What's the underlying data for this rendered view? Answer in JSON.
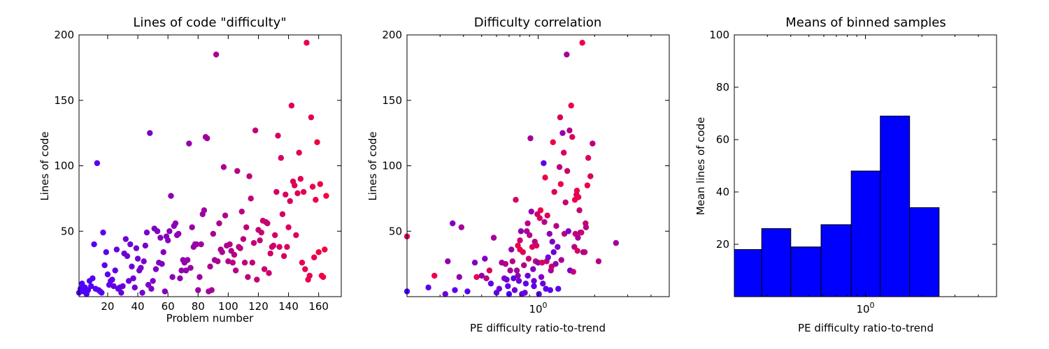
{
  "chart_data": [
    {
      "type": "scatter",
      "title": "Lines of code \"difficulty\"",
      "xlabel": "Problem number",
      "ylabel": "Lines of code",
      "xlim": [
        1,
        175
      ],
      "ylim": [
        0,
        200
      ],
      "x_ticks": [
        "20",
        "40",
        "60",
        "80",
        "100",
        "120",
        "140",
        "160"
      ],
      "y_ticks": [
        "50",
        "100",
        "150",
        "200"
      ],
      "color_gradient": [
        "#4a00ff",
        "#ff0033"
      ],
      "points": [
        [
          1,
          3
        ],
        [
          2,
          6
        ],
        [
          3,
          10
        ],
        [
          4,
          4
        ],
        [
          5,
          7
        ],
        [
          6,
          2
        ],
        [
          7,
          5
        ],
        [
          8,
          12
        ],
        [
          9,
          8
        ],
        [
          10,
          14
        ],
        [
          11,
          40
        ],
        [
          12,
          6
        ],
        [
          13,
          102
        ],
        [
          14,
          5
        ],
        [
          15,
          4
        ],
        [
          16,
          3
        ],
        [
          17,
          49
        ],
        [
          18,
          24
        ],
        [
          19,
          34
        ],
        [
          20,
          17
        ],
        [
          21,
          9
        ],
        [
          22,
          12
        ],
        [
          23,
          13
        ],
        [
          24,
          8
        ],
        [
          25,
          20
        ],
        [
          26,
          36
        ],
        [
          27,
          6
        ],
        [
          28,
          7
        ],
        [
          29,
          3
        ],
        [
          30,
          8
        ],
        [
          31,
          33
        ],
        [
          32,
          44
        ],
        [
          33,
          31
        ],
        [
          34,
          12
        ],
        [
          35,
          40
        ],
        [
          36,
          23
        ],
        [
          37,
          14
        ],
        [
          38,
          7
        ],
        [
          39,
          37
        ],
        [
          40,
          29
        ],
        [
          41,
          20
        ],
        [
          42,
          22
        ],
        [
          43,
          3
        ],
        [
          44,
          27
        ],
        [
          45,
          39
        ],
        [
          46,
          49
        ],
        [
          47,
          9
        ],
        [
          48,
          125
        ],
        [
          49,
          6
        ],
        [
          50,
          12
        ],
        [
          51,
          52
        ],
        [
          52,
          21
        ],
        [
          53,
          50
        ],
        [
          54,
          26
        ],
        [
          55,
          45
        ],
        [
          56,
          25
        ],
        [
          57,
          34
        ],
        [
          58,
          4
        ],
        [
          59,
          46
        ],
        [
          60,
          43
        ],
        [
          61,
          50
        ],
        [
          62,
          77
        ],
        [
          63,
          15
        ],
        [
          64,
          54
        ],
        [
          65,
          56
        ],
        [
          66,
          47
        ],
        [
          67,
          48
        ],
        [
          68,
          14
        ],
        [
          69,
          20
        ],
        [
          70,
          28
        ],
        [
          71,
          26
        ],
        [
          72,
          20
        ],
        [
          73,
          28
        ],
        [
          74,
          117
        ],
        [
          75,
          22
        ],
        [
          76,
          53
        ],
        [
          77,
          38
        ],
        [
          78,
          40
        ],
        [
          79,
          40
        ],
        [
          80,
          5
        ],
        [
          81,
          15
        ],
        [
          82,
          40
        ],
        [
          83,
          63
        ],
        [
          84,
          66
        ],
        [
          85,
          122
        ],
        [
          86,
          121
        ],
        [
          87,
          4
        ],
        [
          88,
          23
        ],
        [
          89,
          5
        ],
        [
          90,
          48
        ],
        [
          91,
          28
        ],
        [
          92,
          185
        ],
        [
          93,
          27
        ],
        [
          94,
          56
        ],
        [
          95,
          36
        ],
        [
          96,
          34
        ],
        [
          97,
          99
        ],
        [
          98,
          62
        ],
        [
          99,
          39
        ],
        [
          100,
          27
        ],
        [
          101,
          40
        ],
        [
          102,
          35
        ],
        [
          103,
          26
        ],
        [
          104,
          32
        ],
        [
          105,
          20
        ],
        [
          106,
          96
        ],
        [
          107,
          38
        ],
        [
          108,
          37
        ],
        [
          109,
          65
        ],
        [
          110,
          44
        ],
        [
          111,
          26
        ],
        [
          112,
          53
        ],
        [
          113,
          15
        ],
        [
          114,
          92
        ],
        [
          115,
          75
        ],
        [
          116,
          26
        ],
        [
          117,
          41
        ],
        [
          118,
          127
        ],
        [
          119,
          13
        ],
        [
          120,
          51
        ],
        [
          121,
          43
        ],
        [
          122,
          49
        ],
        [
          123,
          58
        ],
        [
          124,
          21
        ],
        [
          125,
          57
        ],
        [
          126,
          56
        ],
        [
          127,
          18
        ],
        [
          128,
          33
        ],
        [
          129,
          38
        ],
        [
          130,
          39
        ],
        [
          131,
          47
        ],
        [
          132,
          80
        ],
        [
          133,
          123
        ],
        [
          134,
          38
        ],
        [
          135,
          106
        ],
        [
          136,
          63
        ],
        [
          137,
          31
        ],
        [
          138,
          78
        ],
        [
          139,
          38
        ],
        [
          140,
          53
        ],
        [
          141,
          73
        ],
        [
          142,
          146
        ],
        [
          143,
          88
        ],
        [
          144,
          85
        ],
        [
          145,
          47
        ],
        [
          146,
          79
        ],
        [
          147,
          110
        ],
        [
          148,
          90
        ],
        [
          149,
          26
        ],
        [
          150,
          80
        ],
        [
          151,
          21
        ],
        [
          152,
          194
        ],
        [
          153,
          13
        ],
        [
          154,
          16
        ],
        [
          155,
          137
        ],
        [
          156,
          84
        ],
        [
          157,
          30
        ],
        [
          158,
          74
        ],
        [
          159,
          118
        ],
        [
          160,
          34
        ],
        [
          161,
          86
        ],
        [
          162,
          16
        ],
        [
          163,
          15
        ],
        [
          164,
          36
        ],
        [
          165,
          77
        ]
      ]
    },
    {
      "type": "scatter",
      "title": "Difficulty correlation",
      "xlabel": "PE difficulty ratio-to-trend",
      "ylabel": "Lines of code",
      "xscale": "log",
      "xlim": [
        0.2,
        5
      ],
      "ylim": [
        0,
        200
      ],
      "x_ticks": [
        {
          "value": 1,
          "label": "10^0"
        }
      ],
      "y_ticks": [
        "50",
        "100",
        "150",
        "200"
      ],
      "points": [
        [
          0.2,
          46,
          0.8
        ],
        [
          0.2,
          4,
          0.0
        ],
        [
          0.26,
          7,
          0.1
        ],
        [
          0.28,
          16,
          0.9
        ],
        [
          0.32,
          2,
          0.2
        ],
        [
          0.33,
          27,
          0.4
        ],
        [
          0.35,
          56,
          0.3
        ],
        [
          0.36,
          5,
          0.1
        ],
        [
          0.38,
          15,
          0.4
        ],
        [
          0.39,
          53,
          0.5
        ],
        [
          0.42,
          4,
          0.1
        ],
        [
          0.46,
          26,
          0.3
        ],
        [
          0.47,
          15,
          0.9
        ],
        [
          0.5,
          16,
          0.4
        ],
        [
          0.52,
          29,
          0.3
        ],
        [
          0.53,
          14,
          0.6
        ],
        [
          0.55,
          20,
          0.8
        ],
        [
          0.56,
          10,
          0.1
        ],
        [
          0.58,
          45,
          0.5
        ],
        [
          0.6,
          3,
          0.1
        ],
        [
          0.62,
          6,
          0.2
        ],
        [
          0.64,
          26,
          0.5
        ],
        [
          0.66,
          14,
          0.3
        ],
        [
          0.67,
          25,
          0.6
        ],
        [
          0.68,
          13,
          0.2
        ],
        [
          0.69,
          8,
          0.1
        ],
        [
          0.7,
          2,
          0.0
        ],
        [
          0.71,
          20,
          0.5
        ],
        [
          0.72,
          36,
          0.4
        ],
        [
          0.73,
          27,
          0.6
        ],
        [
          0.74,
          14,
          0.1
        ],
        [
          0.75,
          5,
          0.2
        ],
        [
          0.76,
          74,
          0.8
        ],
        [
          0.77,
          20,
          0.5
        ],
        [
          0.78,
          39,
          0.9
        ],
        [
          0.78,
          16,
          0.4
        ],
        [
          0.79,
          12,
          0.2
        ],
        [
          0.8,
          43,
          0.7
        ],
        [
          0.8,
          36,
          0.9
        ],
        [
          0.81,
          50,
          0.4
        ],
        [
          0.82,
          2,
          0.1
        ],
        [
          0.83,
          34,
          0.8
        ],
        [
          0.84,
          24,
          0.6
        ],
        [
          0.85,
          3,
          0.2
        ],
        [
          0.86,
          10,
          0.1
        ],
        [
          0.87,
          50,
          0.5
        ],
        [
          0.88,
          56,
          0.6
        ],
        [
          0.88,
          16,
          0.2
        ],
        [
          0.89,
          29,
          0.7
        ],
        [
          0.9,
          47,
          0.6
        ],
        [
          0.91,
          121,
          0.5
        ],
        [
          0.92,
          65,
          0.4
        ],
        [
          0.93,
          38,
          0.8
        ],
        [
          0.94,
          21,
          0.3
        ],
        [
          0.95,
          8,
          0.1
        ],
        [
          0.95,
          12,
          0.2
        ],
        [
          0.96,
          42,
          0.6
        ],
        [
          0.97,
          27,
          0.7
        ],
        [
          0.98,
          39,
          0.8
        ],
        [
          0.99,
          63,
          0.7
        ],
        [
          1.0,
          26,
          0.4
        ],
        [
          1.01,
          2,
          0.1
        ],
        [
          1.02,
          60,
          0.8
        ],
        [
          1.03,
          66,
          0.9
        ],
        [
          1.04,
          15,
          0.3
        ],
        [
          1.05,
          26,
          0.8
        ],
        [
          1.06,
          10,
          0.2
        ],
        [
          1.07,
          102,
          0.1
        ],
        [
          1.08,
          57,
          0.6
        ],
        [
          1.09,
          91,
          0.9
        ],
        [
          1.1,
          6,
          0.1
        ],
        [
          1.11,
          27,
          0.7
        ],
        [
          1.12,
          62,
          0.8
        ],
        [
          1.13,
          30,
          0.2
        ],
        [
          1.15,
          48,
          0.4
        ],
        [
          1.16,
          5,
          0.1
        ],
        [
          1.17,
          20,
          0.5
        ],
        [
          1.18,
          23,
          0.7
        ],
        [
          1.19,
          42,
          0.3
        ],
        [
          1.2,
          118,
          0.9
        ],
        [
          1.21,
          34,
          0.2
        ],
        [
          1.22,
          80,
          0.8
        ],
        [
          1.24,
          25,
          0.4
        ],
        [
          1.25,
          54,
          0.6
        ],
        [
          1.27,
          38,
          0.3
        ],
        [
          1.28,
          6,
          0.1
        ],
        [
          1.3,
          99,
          0.6
        ],
        [
          1.31,
          137,
          0.8
        ],
        [
          1.32,
          86,
          0.9
        ],
        [
          1.33,
          28,
          0.5
        ],
        [
          1.35,
          125,
          0.4
        ],
        [
          1.37,
          110,
          0.8
        ],
        [
          1.38,
          48,
          0.6
        ],
        [
          1.4,
          72,
          0.7
        ],
        [
          1.42,
          185,
          0.5
        ],
        [
          1.43,
          96,
          0.7
        ],
        [
          1.45,
          50,
          0.3
        ],
        [
          1.47,
          127,
          0.6
        ],
        [
          1.48,
          20,
          0.2
        ],
        [
          1.5,
          146,
          0.9
        ],
        [
          1.52,
          122,
          0.8
        ],
        [
          1.54,
          19,
          0.7
        ],
        [
          1.56,
          38,
          0.6
        ],
        [
          1.57,
          74,
          0.9
        ],
        [
          1.58,
          48,
          0.7
        ],
        [
          1.6,
          78,
          0.8
        ],
        [
          1.61,
          81,
          0.9
        ],
        [
          1.62,
          35,
          0.8
        ],
        [
          1.63,
          45,
          0.5
        ],
        [
          1.64,
          76,
          0.9
        ],
        [
          1.66,
          66,
          0.7
        ],
        [
          1.68,
          49,
          0.6
        ],
        [
          1.7,
          49,
          0.7
        ],
        [
          1.72,
          194,
          0.9
        ],
        [
          1.74,
          34,
          0.5
        ],
        [
          1.77,
          34,
          0.6
        ],
        [
          1.79,
          56,
          0.7
        ],
        [
          1.8,
          53,
          0.6
        ],
        [
          1.83,
          85,
          0.9
        ],
        [
          1.85,
          106,
          0.8
        ],
        [
          1.9,
          92,
          0.8
        ],
        [
          1.95,
          117,
          0.6
        ],
        [
          2.1,
          27,
          0.6
        ],
        [
          2.6,
          41,
          0.5
        ]
      ]
    },
    {
      "type": "bar",
      "title": "Means of binned samples",
      "xlabel": "PE difficulty ratio-to-trend",
      "ylabel": "Mean lines of code",
      "xscale": "log",
      "xlim": [
        0.2,
        5
      ],
      "ylim": [
        0,
        100
      ],
      "x_ticks": [
        {
          "value": 1,
          "label": "10^0"
        }
      ],
      "y_ticks": [
        "20",
        "40",
        "60",
        "80",
        "100"
      ],
      "bar_color": "#0000ff",
      "bins": [
        {
          "x0": 0.2,
          "x1": 0.28,
          "value": 18
        },
        {
          "x0": 0.28,
          "x1": 0.4,
          "value": 26
        },
        {
          "x0": 0.4,
          "x1": 0.58,
          "value": 19
        },
        {
          "x0": 0.58,
          "x1": 0.84,
          "value": 27.5
        },
        {
          "x0": 0.84,
          "x1": 1.2,
          "value": 48
        },
        {
          "x0": 1.2,
          "x1": 1.72,
          "value": 69
        },
        {
          "x0": 1.72,
          "x1": 2.47,
          "value": 34
        }
      ]
    }
  ]
}
